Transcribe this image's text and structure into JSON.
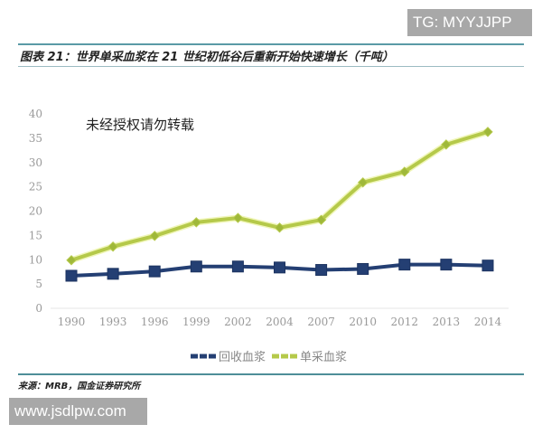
{
  "badges": {
    "top_right": "TG: MYYJJPP",
    "bottom_left": "www.jsdlpw.com"
  },
  "figure": {
    "title": "图表 21：世界单采血浆在 21 世纪初低谷后重新开始快速增长（千吨）",
    "watermark": "未经授权请勿转载",
    "source": "来源：MRB，国金证券研究所"
  },
  "legend": {
    "items": [
      {
        "label": "回收血浆",
        "color": "#243f73"
      },
      {
        "label": "单采血浆",
        "color": "#b5c94a"
      }
    ]
  },
  "chart_data": {
    "type": "line",
    "title": "世界单采血浆在 21 世纪初低谷后重新开始快速增长（千吨）",
    "xlabel": "",
    "ylabel": "",
    "x": [
      "1990",
      "1993",
      "1996",
      "1999",
      "2002",
      "2004",
      "2007",
      "2010",
      "2012",
      "2013",
      "2014"
    ],
    "ylim": [
      0,
      40
    ],
    "yticks": [
      0,
      5,
      10,
      15,
      20,
      25,
      30,
      35,
      40
    ],
    "grid": false,
    "legend_position": "bottom",
    "series": [
      {
        "name": "回收血浆",
        "color": "#243f73",
        "marker": "square",
        "values": [
          6.7,
          7.1,
          7.6,
          8.6,
          8.6,
          8.4,
          7.9,
          8.1,
          9.0,
          9.0,
          8.8
        ]
      },
      {
        "name": "单采血浆",
        "color": "#b5c94a",
        "marker": "diamond",
        "values": [
          9.9,
          12.7,
          14.9,
          17.7,
          18.6,
          16.6,
          18.2,
          25.9,
          28.1,
          33.7,
          36.3
        ]
      }
    ]
  }
}
